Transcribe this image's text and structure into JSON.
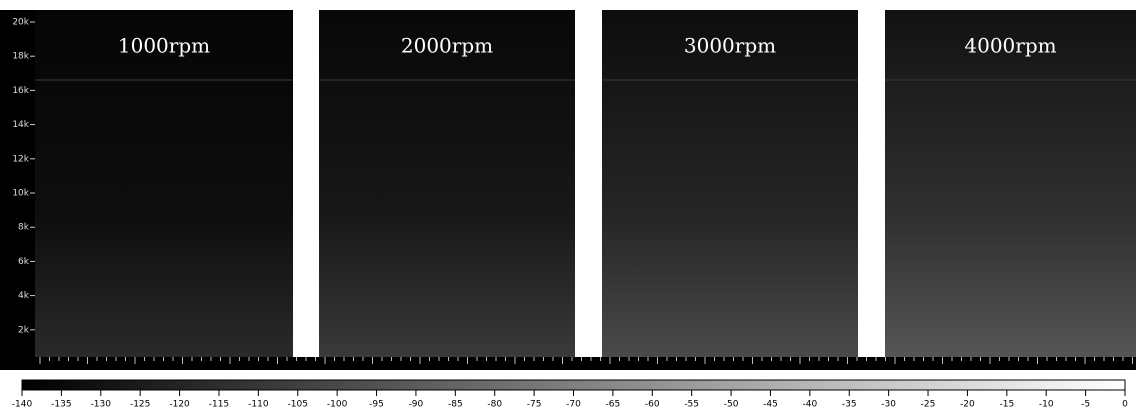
{
  "y_axis": {
    "ylim": [
      0,
      20000
    ],
    "yticks": [
      {
        "value": 2000,
        "label": "2k"
      },
      {
        "value": 4000,
        "label": "4k"
      },
      {
        "value": 6000,
        "label": "6k"
      },
      {
        "value": 8000,
        "label": "8k"
      },
      {
        "value": 10000,
        "label": "10k"
      },
      {
        "value": 12000,
        "label": "12k"
      },
      {
        "value": 14000,
        "label": "14k"
      },
      {
        "value": 16000,
        "label": "16k"
      },
      {
        "value": 18000,
        "label": "18k"
      },
      {
        "value": 20000,
        "label": "20k"
      }
    ]
  },
  "panels": [
    {
      "label": "1000rpm"
    },
    {
      "label": "2000rpm"
    },
    {
      "label": "3000rpm"
    },
    {
      "label": "4000rpm"
    }
  ],
  "colorbar": {
    "xlim": [
      -140,
      0
    ],
    "xticks": [
      -140,
      -135,
      -130,
      -125,
      -120,
      -115,
      -110,
      -105,
      -100,
      -95,
      -90,
      -85,
      -80,
      -75,
      -70,
      -65,
      -60,
      -55,
      -50,
      -45,
      -40,
      -35,
      -30,
      -25,
      -20,
      -15,
      -10,
      -5,
      0
    ]
  }
}
